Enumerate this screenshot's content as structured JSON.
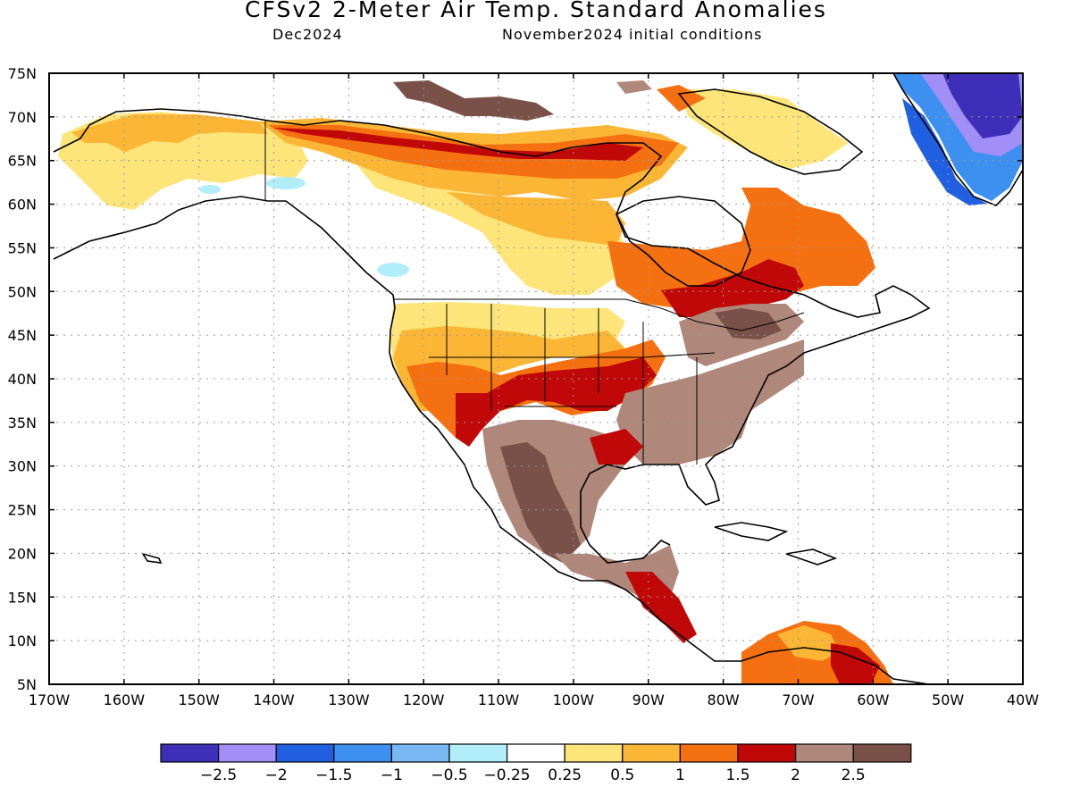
{
  "title": "CFSv2 2-Meter Air Temp. Standard Anomalies",
  "valid_month": "Dec2024",
  "initial_conditions": "November2024 initial conditions",
  "lat_labels": [
    "75N",
    "70N",
    "65N",
    "60N",
    "55N",
    "50N",
    "45N",
    "40N",
    "35N",
    "30N",
    "25N",
    "20N",
    "15N",
    "10N",
    "5N"
  ],
  "lon_labels": [
    "170W",
    "160W",
    "150W",
    "140W",
    "130W",
    "120W",
    "110W",
    "100W",
    "90W",
    "80W",
    "70W",
    "60W",
    "50W",
    "40W"
  ],
  "colorbar": {
    "colors": [
      "#3f2fb8",
      "#a18ff7",
      "#2060e0",
      "#3d8ff0",
      "#7ab8f5",
      "#b2eefa",
      "#ffffff",
      "#fde57a",
      "#fbb636",
      "#f57010",
      "#c00808",
      "#b0877b",
      "#7a5148"
    ],
    "labels": [
      "-2.5",
      "-2",
      "-1.5",
      "-1",
      "-0.5",
      "-0.25",
      "0.25",
      "0.5",
      "1",
      "1.5",
      "2",
      "2.5"
    ]
  },
  "map_colors": {
    "land_outline": "#000000",
    "coolest": "#3f2fb8",
    "cool": "#a18ff7"
  }
}
